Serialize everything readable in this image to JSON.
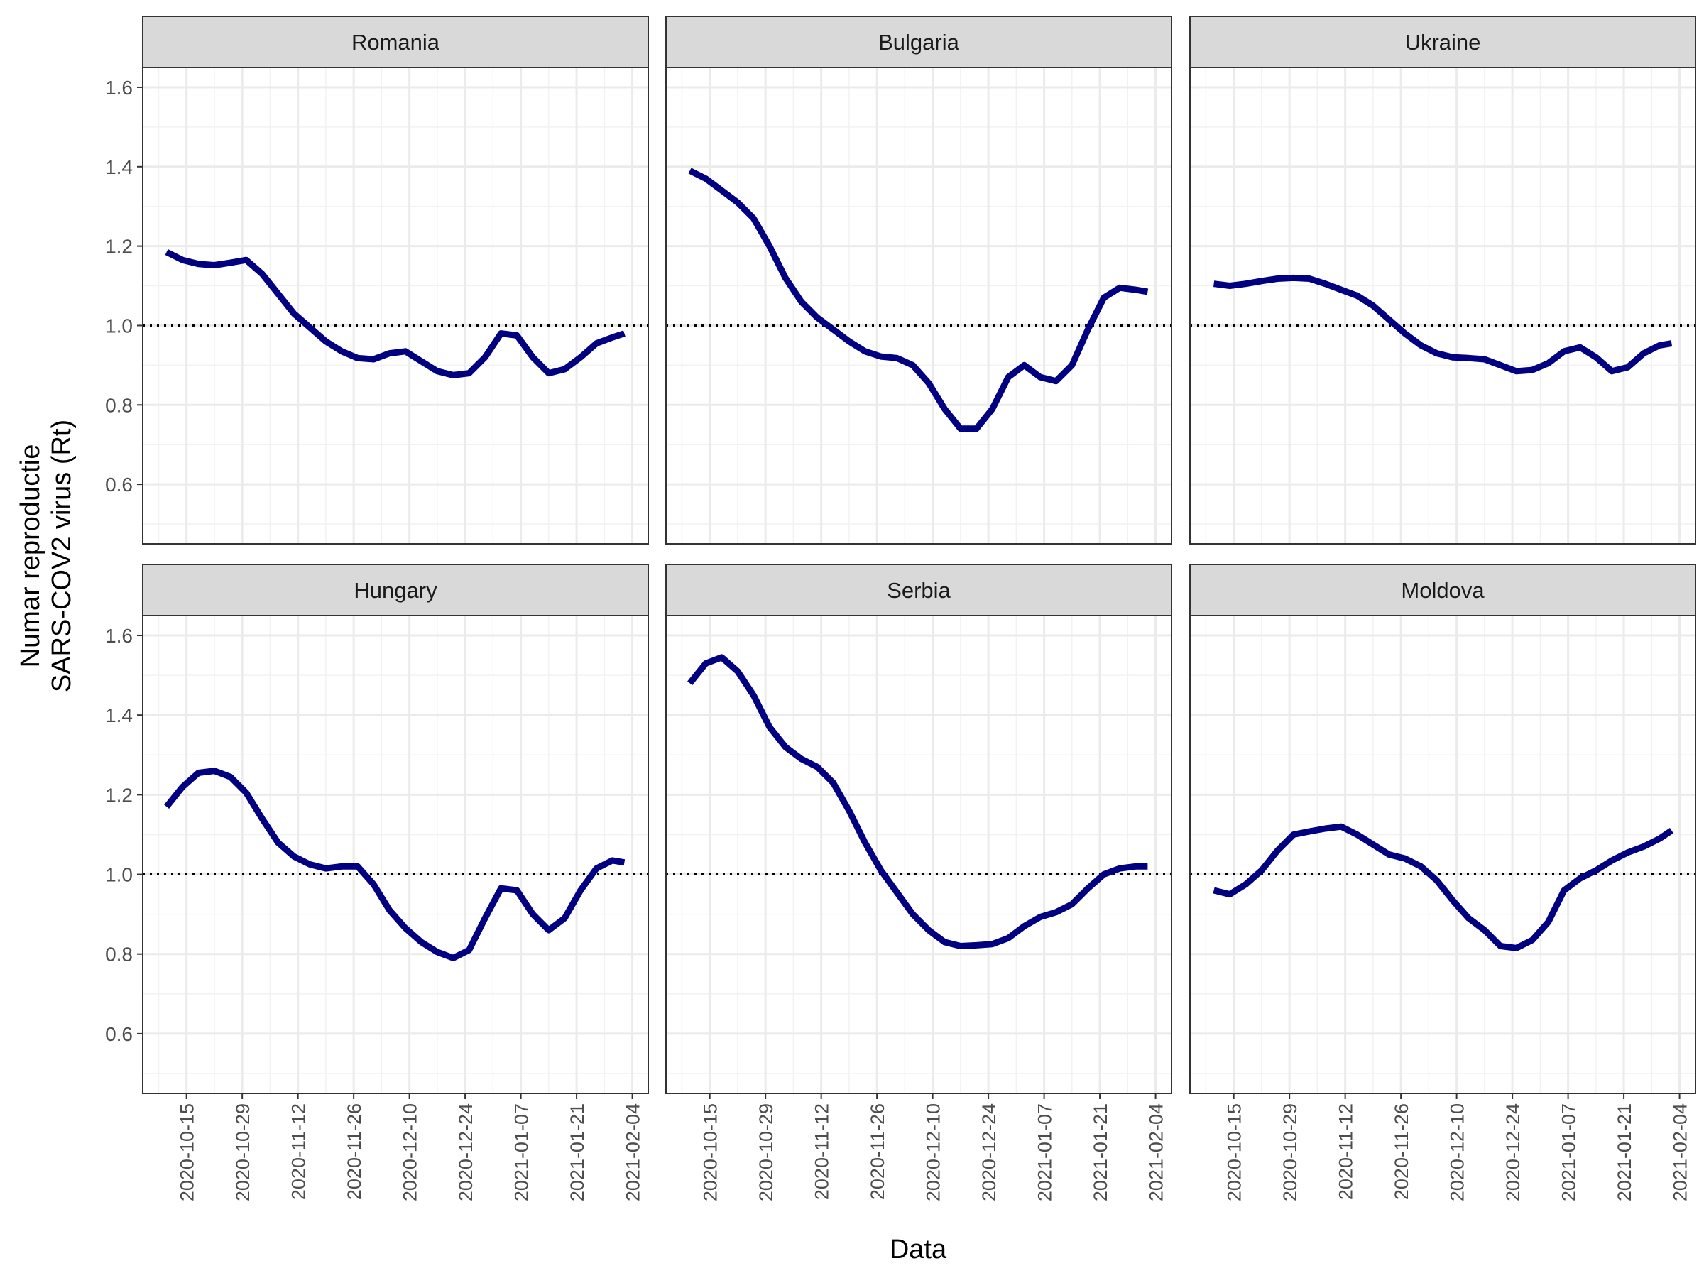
{
  "chart_data": {
    "type": "line",
    "xlabel": "Data",
    "ylabel": [
      "Numar reproductie",
      "SARS-COV2 virus (Rt)"
    ],
    "color": "#000080",
    "hline": 1,
    "grid": true,
    "xlim": [
      "2020-10-04",
      "2021-02-08"
    ],
    "xticks": [
      "2020-10-15",
      "2020-10-29",
      "2020-11-12",
      "2020-11-26",
      "2020-12-10",
      "2020-12-24",
      "2021-01-07",
      "2021-01-21",
      "2021-02-04"
    ],
    "ylim": [
      0.45,
      1.65
    ],
    "yticks": [
      0.6,
      0.8,
      {
        "value": 1,
        "label": "1.0"
      },
      1.2,
      1.4,
      1.6
    ],
    "x": [
      "2020-10-10",
      "2020-10-14",
      "2020-10-18",
      "2020-10-22",
      "2020-10-26",
      "2020-10-30",
      "2020-11-03",
      "2020-11-07",
      "2020-11-11",
      "2020-11-15",
      "2020-11-19",
      "2020-11-23",
      "2020-11-27",
      "2020-12-01",
      "2020-12-05",
      "2020-12-09",
      "2020-12-13",
      "2020-12-17",
      "2020-12-21",
      "2020-12-25",
      "2020-12-29",
      "2021-01-02",
      "2021-01-06",
      "2021-01-10",
      "2021-01-14",
      "2021-01-18",
      "2021-01-22",
      "2021-01-26",
      "2021-01-30",
      "2021-02-02"
    ],
    "panels": [
      {
        "title": "Romania",
        "values": [
          1.185,
          1.165,
          1.155,
          1.152,
          1.158,
          1.165,
          1.13,
          1.08,
          1.03,
          0.995,
          0.96,
          0.935,
          0.918,
          0.915,
          0.93,
          0.935,
          0.91,
          0.885,
          0.875,
          0.88,
          0.92,
          0.98,
          0.975,
          0.92,
          0.88,
          0.89,
          0.92,
          0.955,
          0.97,
          0.98
        ]
      },
      {
        "title": "Bulgaria",
        "values": [
          1.39,
          1.37,
          1.34,
          1.31,
          1.27,
          1.2,
          1.12,
          1.06,
          1.02,
          0.99,
          0.96,
          0.935,
          0.922,
          0.918,
          0.9,
          0.855,
          0.79,
          0.74,
          0.74,
          0.79,
          0.87,
          0.9,
          0.87,
          0.86,
          0.9,
          0.99,
          1.07,
          1.095,
          1.09,
          1.085
        ]
      },
      {
        "title": "Ukraine",
        "values": [
          1.105,
          1.1,
          1.105,
          1.112,
          1.118,
          1.12,
          1.118,
          1.105,
          1.09,
          1.075,
          1.05,
          1.015,
          0.98,
          0.95,
          0.93,
          0.92,
          0.918,
          0.915,
          0.9,
          0.885,
          0.888,
          0.905,
          0.935,
          0.945,
          0.92,
          0.885,
          0.895,
          0.93,
          0.95,
          0.955
        ]
      },
      {
        "title": "Hungary",
        "values": [
          1.17,
          1.22,
          1.255,
          1.26,
          1.245,
          1.205,
          1.14,
          1.08,
          1.045,
          1.025,
          1.015,
          1.02,
          1.02,
          0.975,
          0.91,
          0.865,
          0.83,
          0.805,
          0.79,
          0.81,
          0.89,
          0.965,
          0.96,
          0.9,
          0.86,
          0.89,
          0.96,
          1.015,
          1.035,
          1.03
        ]
      },
      {
        "title": "Serbia",
        "values": [
          1.48,
          1.53,
          1.545,
          1.51,
          1.45,
          1.37,
          1.32,
          1.29,
          1.27,
          1.23,
          1.16,
          1.08,
          1.01,
          0.955,
          0.9,
          0.86,
          0.83,
          0.82,
          0.822,
          0.825,
          0.84,
          0.87,
          0.893,
          0.905,
          0.925,
          0.965,
          1.0,
          1.015,
          1.02,
          1.02
        ]
      },
      {
        "title": "Moldova",
        "values": [
          0.96,
          0.95,
          0.975,
          1.01,
          1.06,
          1.1,
          1.108,
          1.115,
          1.12,
          1.1,
          1.075,
          1.05,
          1.04,
          1.02,
          0.985,
          0.935,
          0.89,
          0.86,
          0.82,
          0.815,
          0.835,
          0.88,
          0.96,
          0.99,
          1.01,
          1.035,
          1.055,
          1.07,
          1.09,
          1.11
        ]
      }
    ]
  }
}
